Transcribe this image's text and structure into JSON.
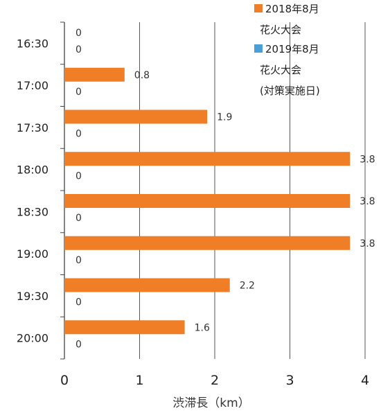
{
  "chart_data": {
    "type": "bar",
    "orientation": "horizontal",
    "categories": [
      "16:30",
      "17:00",
      "17:30",
      "18:00",
      "18:30",
      "19:00",
      "19:30",
      "20:00"
    ],
    "series": [
      {
        "name": "2018年8月 花火大会",
        "legend_lines": [
          "2018年8月",
          "花火大会"
        ],
        "color": "#F07E26",
        "values": [
          0,
          0.8,
          1.9,
          3.8,
          3.8,
          3.8,
          2.2,
          1.6
        ],
        "labels": [
          "0",
          "0.8",
          "1.9",
          "3.8",
          "3.8",
          "3.8",
          "2.2",
          "1.6"
        ]
      },
      {
        "name": "2019年8月 花火大会 (対策実施日)",
        "legend_lines": [
          "2019年8月",
          "花火大会",
          "(対策実施日)"
        ],
        "color": "#4A9FD8",
        "values": [
          0,
          0,
          0,
          0,
          0,
          0,
          0,
          0
        ],
        "labels": [
          "0",
          "0",
          "0",
          "0",
          "0",
          "0",
          "0",
          "0"
        ]
      }
    ],
    "xlim": [
      0,
      4
    ],
    "xticks": [
      "0",
      "1",
      "2",
      "3",
      "4"
    ],
    "xlabel": "渋滞長（km）",
    "grid": "vertical",
    "legend_position": "top-right"
  }
}
